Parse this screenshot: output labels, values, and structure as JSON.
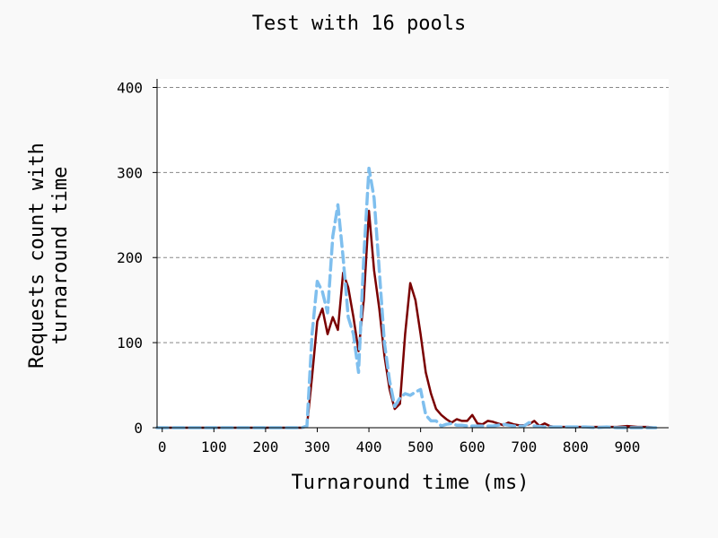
{
  "chart_data": {
    "type": "line",
    "title": "Test with 16 pools",
    "xlabel": "Turnaround time (ms)",
    "ylabel": [
      "Requests count with",
      "turnaround time"
    ],
    "xlim": [
      -10,
      980
    ],
    "ylim": [
      0,
      410
    ],
    "xticks": [
      0,
      100,
      200,
      300,
      400,
      500,
      600,
      700,
      800,
      900
    ],
    "yticks": [
      0,
      100,
      200,
      300,
      400
    ],
    "grid": "horizontal dashed",
    "legend": "none",
    "series": [
      {
        "color": "#7a0000",
        "style": "solid",
        "x": [
          -10,
          0,
          50,
          100,
          150,
          200,
          250,
          270,
          280,
          290,
          300,
          310,
          320,
          330,
          340,
          350,
          360,
          370,
          380,
          390,
          400,
          410,
          420,
          430,
          440,
          450,
          460,
          470,
          480,
          490,
          500,
          510,
          520,
          530,
          540,
          550,
          560,
          570,
          580,
          590,
          600,
          610,
          620,
          630,
          640,
          650,
          660,
          670,
          680,
          690,
          700,
          710,
          720,
          730,
          740,
          750,
          760,
          780,
          800,
          820,
          840,
          860,
          880,
          900,
          920,
          940,
          955
        ],
        "y": [
          0,
          0,
          0,
          0,
          0,
          0,
          0,
          0,
          2,
          60,
          125,
          140,
          110,
          130,
          115,
          182,
          165,
          130,
          90,
          150,
          255,
          185,
          140,
          85,
          45,
          22,
          28,
          110,
          170,
          150,
          110,
          65,
          40,
          22,
          15,
          10,
          6,
          10,
          8,
          8,
          15,
          5,
          4,
          8,
          7,
          5,
          3,
          6,
          4,
          3,
          3,
          4,
          8,
          2,
          5,
          2,
          1,
          1,
          1,
          1,
          1,
          1,
          1,
          2,
          1,
          1,
          0
        ]
      },
      {
        "color": "#7fbfee",
        "style": "dashed",
        "x": [
          -10,
          0,
          50,
          100,
          150,
          200,
          250,
          270,
          280,
          290,
          300,
          310,
          320,
          330,
          340,
          350,
          360,
          370,
          380,
          390,
          400,
          410,
          420,
          430,
          440,
          450,
          460,
          470,
          480,
          490,
          500,
          510,
          520,
          530,
          540,
          550,
          560,
          570,
          580,
          590,
          600,
          620,
          640,
          660,
          680,
          700,
          710,
          720,
          740,
          760,
          780,
          800,
          820,
          840,
          860,
          880,
          900,
          920,
          940,
          955
        ],
        "y": [
          0,
          0,
          0,
          0,
          0,
          0,
          0,
          0,
          2,
          110,
          172,
          160,
          135,
          225,
          262,
          200,
          130,
          110,
          65,
          200,
          305,
          270,
          185,
          100,
          55,
          25,
          35,
          40,
          38,
          42,
          45,
          15,
          8,
          8,
          2,
          4,
          5,
          3,
          3,
          2,
          2,
          2,
          2,
          4,
          2,
          2,
          6,
          2,
          1,
          1,
          1,
          1,
          1,
          0,
          1,
          0,
          0,
          0,
          0,
          0
        ]
      }
    ]
  }
}
